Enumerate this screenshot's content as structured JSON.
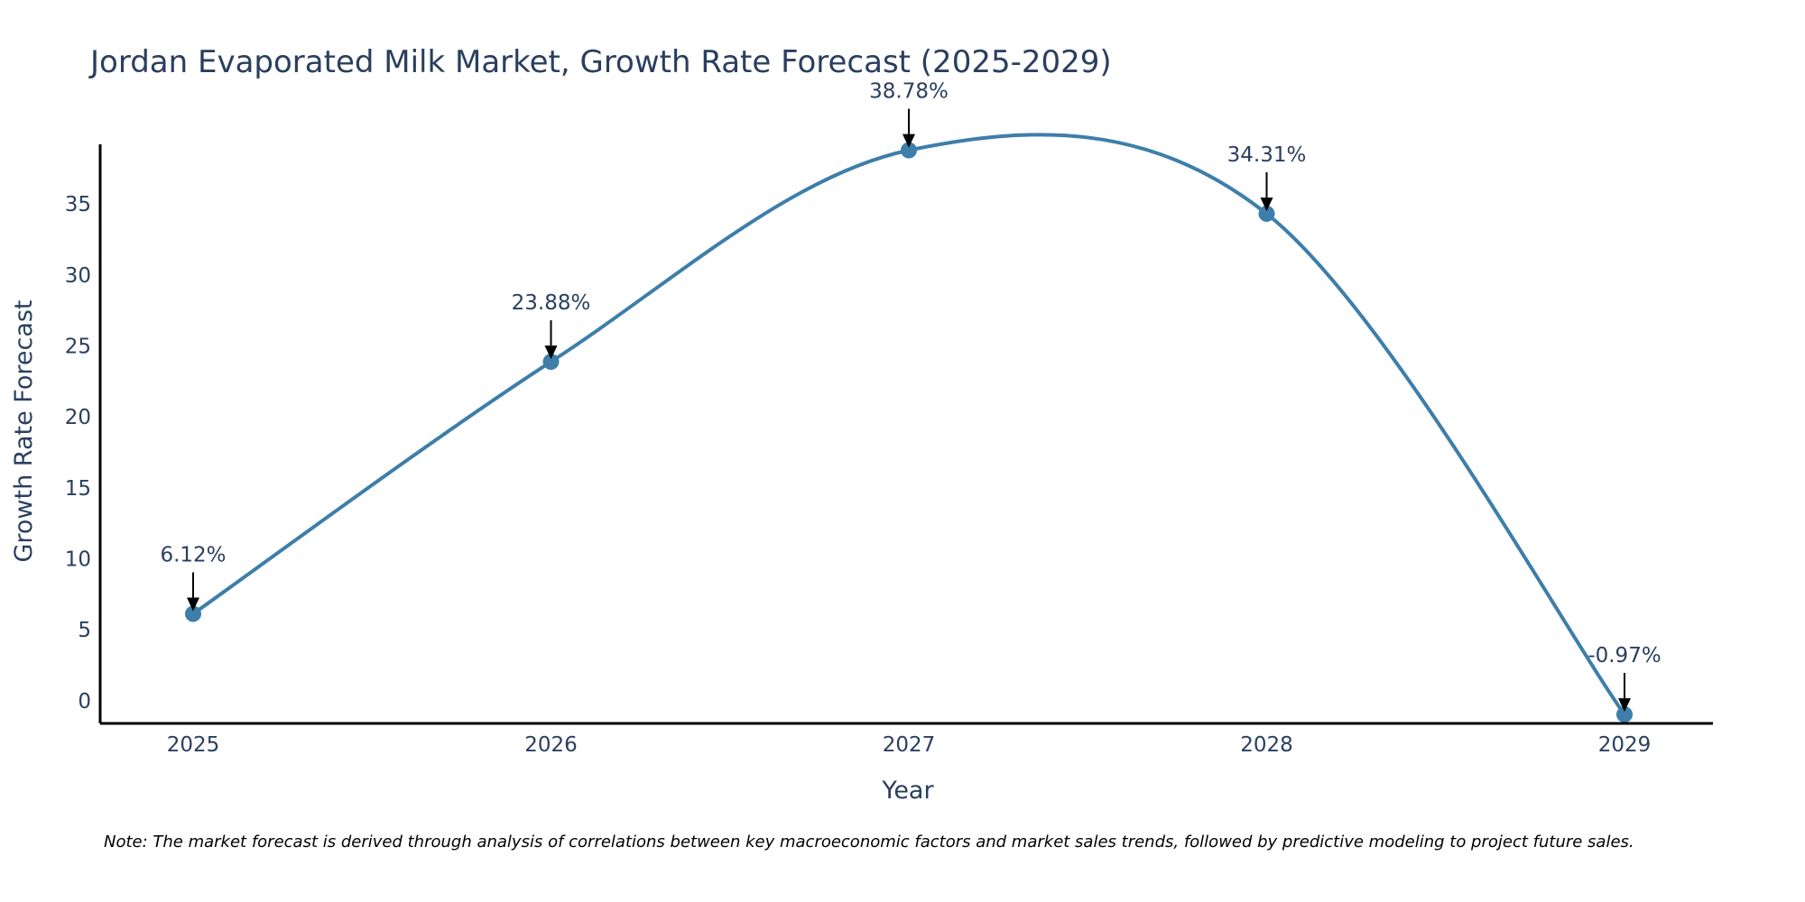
{
  "chart_data": {
    "type": "line",
    "title": "Jordan Evaporated Milk Market, Growth Rate Forecast (2025-2029)",
    "xlabel": "Year",
    "ylabel": "Growth Rate Forecast",
    "categories": [
      "2025",
      "2026",
      "2027",
      "2028",
      "2029"
    ],
    "values": [
      6.12,
      23.88,
      38.78,
      34.31,
      -0.97
    ],
    "data_labels": [
      "6.12%",
      "23.88%",
      "38.78%",
      "34.31%",
      "-0.97%"
    ],
    "yticks": [
      0,
      5,
      10,
      15,
      20,
      25,
      30,
      35
    ],
    "ylim": [
      -1.6,
      39.2
    ],
    "line_shape": "spline",
    "grid": false,
    "series_color": "#3d7eaa",
    "note": "Note: The market forecast is derived through analysis of correlations between key macroeconomic factors and market sales trends, followed by predictive modeling to project future sales."
  }
}
